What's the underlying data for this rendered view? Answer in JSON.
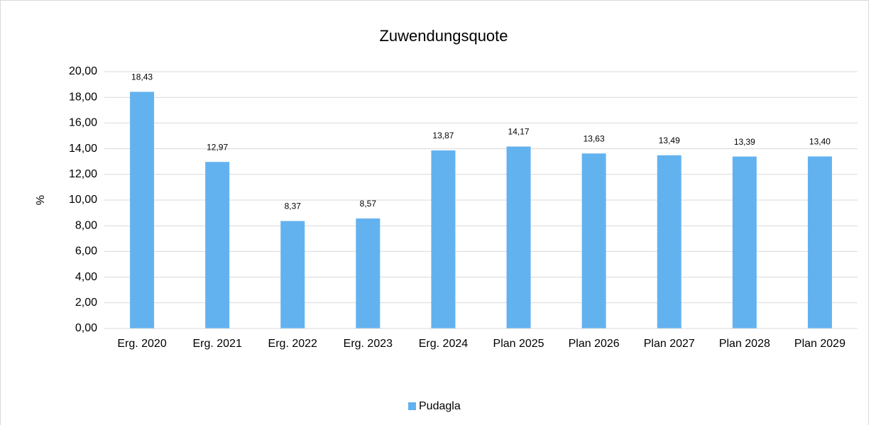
{
  "chart_data": {
    "type": "bar",
    "title": "Zuwendungsquote",
    "y_label": "%",
    "categories": [
      "Erg. 2020",
      "Erg. 2021",
      "Erg. 2022",
      "Erg. 2023",
      "Erg. 2024",
      "Plan 2025",
      "Plan 2026",
      "Plan 2027",
      "Plan 2028",
      "Plan 2029"
    ],
    "series": [
      {
        "name": "Pudagla",
        "color": "#63b2f0",
        "values": [
          18.43,
          12.97,
          8.37,
          8.57,
          13.87,
          14.17,
          13.63,
          13.49,
          13.39,
          13.4
        ],
        "value_labels": [
          "18,43",
          "12,97",
          "8,37",
          "8,57",
          "13,87",
          "14,17",
          "13,63",
          "13,49",
          "13,39",
          "13,40"
        ]
      }
    ],
    "ylim": [
      0,
      20
    ],
    "yticks": [
      {
        "value": 0,
        "label": "0,00"
      },
      {
        "value": 2,
        "label": "2,00"
      },
      {
        "value": 4,
        "label": "4,00"
      },
      {
        "value": 6,
        "label": "6,00"
      },
      {
        "value": 8,
        "label": "8,00"
      },
      {
        "value": 10,
        "label": "10,00"
      },
      {
        "value": 12,
        "label": "12,00"
      },
      {
        "value": 14,
        "label": "14,00"
      },
      {
        "value": 16,
        "label": "16,00"
      },
      {
        "value": 18,
        "label": "18,00"
      },
      {
        "value": 20,
        "label": "20,00"
      }
    ],
    "grid": true,
    "legend": "bottom"
  }
}
